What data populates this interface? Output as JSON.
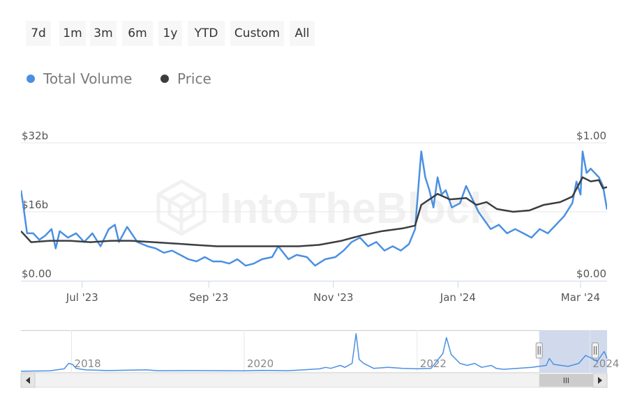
{
  "range_selector": {
    "buttons": [
      {
        "label": "7d"
      },
      {
        "label": "1m"
      },
      {
        "label": "3m"
      },
      {
        "label": "6m"
      },
      {
        "label": "1y"
      },
      {
        "label": "YTD"
      },
      {
        "label": "Custom"
      },
      {
        "label": "All"
      }
    ]
  },
  "legend": {
    "items": [
      {
        "label": "Total Volume",
        "color": "#4a90e2"
      },
      {
        "label": "Price",
        "color": "#3b3d40"
      }
    ]
  },
  "watermark": "IntoTheBlock",
  "colors": {
    "volume": "#4a90e2",
    "price": "#3b3d40",
    "navigator_selection": "#ccd6eb"
  },
  "chart_data": {
    "type": "line",
    "title": "",
    "xlabel": "",
    "ylabel": "",
    "x_range": [
      "2023-06-01",
      "2024-03-14"
    ],
    "x_ticks": [
      {
        "date": "2023-07-01",
        "label": "Jul '23"
      },
      {
        "date": "2023-09-01",
        "label": "Sep '23"
      },
      {
        "date": "2023-11-01",
        "label": "Nov '23"
      },
      {
        "date": "2024-01-01",
        "label": "Jan '24"
      },
      {
        "date": "2024-03-01",
        "label": "Mar '24"
      }
    ],
    "y_left": {
      "label_unit": "USD billions",
      "range": [
        0,
        32
      ],
      "ticks": [
        {
          "value": 0,
          "label": "$0.00"
        },
        {
          "value": 16,
          "label": "$16b"
        },
        {
          "value": 32,
          "label": "$32b"
        }
      ]
    },
    "y_right": {
      "label_unit": "USD",
      "range": [
        0,
        1
      ],
      "ticks": [
        {
          "value": 0,
          "label": "$0.00"
        },
        {
          "value": 1,
          "label": "$1.00"
        }
      ]
    },
    "grid": true,
    "legend_position": "top-left",
    "series": [
      {
        "name": "Total Volume",
        "axis": "left",
        "unit": "USD billions",
        "points": [
          [
            "2023-06-01",
            21
          ],
          [
            "2023-06-02",
            18
          ],
          [
            "2023-06-04",
            11
          ],
          [
            "2023-06-07",
            11
          ],
          [
            "2023-06-10",
            9.5
          ],
          [
            "2023-06-13",
            10.5
          ],
          [
            "2023-06-16",
            12
          ],
          [
            "2023-06-18",
            7.5
          ],
          [
            "2023-06-20",
            11.5
          ],
          [
            "2023-06-24",
            10
          ],
          [
            "2023-06-28",
            11
          ],
          [
            "2023-07-02",
            9
          ],
          [
            "2023-07-06",
            11
          ],
          [
            "2023-07-10",
            8
          ],
          [
            "2023-07-14",
            12
          ],
          [
            "2023-07-17",
            13
          ],
          [
            "2023-07-19",
            9
          ],
          [
            "2023-07-23",
            12.5
          ],
          [
            "2023-07-28",
            9
          ],
          [
            "2023-08-02",
            8
          ],
          [
            "2023-08-06",
            7.5
          ],
          [
            "2023-08-10",
            6.5
          ],
          [
            "2023-08-14",
            7
          ],
          [
            "2023-08-18",
            6
          ],
          [
            "2023-08-22",
            5
          ],
          [
            "2023-08-26",
            4.5
          ],
          [
            "2023-08-30",
            5.5
          ],
          [
            "2023-09-03",
            4.5
          ],
          [
            "2023-09-07",
            4.5
          ],
          [
            "2023-09-11",
            4
          ],
          [
            "2023-09-15",
            5
          ],
          [
            "2023-09-19",
            3.5
          ],
          [
            "2023-09-23",
            4
          ],
          [
            "2023-09-27",
            5
          ],
          [
            "2023-10-02",
            5.5
          ],
          [
            "2023-10-05",
            8
          ],
          [
            "2023-10-10",
            5
          ],
          [
            "2023-10-14",
            6
          ],
          [
            "2023-10-19",
            5.5
          ],
          [
            "2023-10-23",
            3.5
          ],
          [
            "2023-10-28",
            5
          ],
          [
            "2023-11-02",
            5.5
          ],
          [
            "2023-11-06",
            7
          ],
          [
            "2023-11-10",
            9
          ],
          [
            "2023-11-14",
            10
          ],
          [
            "2023-11-18",
            8
          ],
          [
            "2023-11-22",
            9
          ],
          [
            "2023-11-26",
            7
          ],
          [
            "2023-11-30",
            8
          ],
          [
            "2023-12-04",
            7
          ],
          [
            "2023-12-08",
            8.5
          ],
          [
            "2023-12-11",
            12
          ],
          [
            "2023-12-13",
            24
          ],
          [
            "2023-12-14",
            30
          ],
          [
            "2023-12-16",
            24
          ],
          [
            "2023-12-18",
            21
          ],
          [
            "2023-12-20",
            17
          ],
          [
            "2023-12-22",
            24
          ],
          [
            "2023-12-24",
            20
          ],
          [
            "2023-12-26",
            21
          ],
          [
            "2023-12-29",
            17
          ],
          [
            "2024-01-02",
            18
          ],
          [
            "2024-01-05",
            22
          ],
          [
            "2024-01-08",
            19
          ],
          [
            "2024-01-11",
            16
          ],
          [
            "2024-01-14",
            14
          ],
          [
            "2024-01-17",
            12
          ],
          [
            "2024-01-21",
            13
          ],
          [
            "2024-01-25",
            11
          ],
          [
            "2024-01-29",
            12
          ],
          [
            "2024-02-02",
            11
          ],
          [
            "2024-02-06",
            10
          ],
          [
            "2024-02-10",
            12
          ],
          [
            "2024-02-14",
            11
          ],
          [
            "2024-02-18",
            13
          ],
          [
            "2024-02-22",
            15
          ],
          [
            "2024-02-26",
            18
          ],
          [
            "2024-02-28",
            23
          ],
          [
            "2024-03-01",
            20
          ],
          [
            "2024-03-02",
            30
          ],
          [
            "2024-03-04",
            25
          ],
          [
            "2024-03-06",
            26
          ],
          [
            "2024-03-08",
            25
          ],
          [
            "2024-03-10",
            24
          ],
          [
            "2024-03-12",
            22
          ],
          [
            "2024-03-14",
            16.5
          ]
        ]
      },
      {
        "name": "Price",
        "axis": "right",
        "unit": "USD",
        "points": [
          [
            "2023-06-01",
            0.36
          ],
          [
            "2023-06-06",
            0.28
          ],
          [
            "2023-06-15",
            0.29
          ],
          [
            "2023-06-25",
            0.29
          ],
          [
            "2023-07-05",
            0.28
          ],
          [
            "2023-07-15",
            0.29
          ],
          [
            "2023-07-25",
            0.29
          ],
          [
            "2023-08-05",
            0.28
          ],
          [
            "2023-08-15",
            0.27
          ],
          [
            "2023-08-25",
            0.26
          ],
          [
            "2023-09-05",
            0.25
          ],
          [
            "2023-09-15",
            0.25
          ],
          [
            "2023-09-25",
            0.25
          ],
          [
            "2023-10-05",
            0.25
          ],
          [
            "2023-10-15",
            0.25
          ],
          [
            "2023-10-25",
            0.26
          ],
          [
            "2023-11-05",
            0.29
          ],
          [
            "2023-11-15",
            0.33
          ],
          [
            "2023-11-25",
            0.36
          ],
          [
            "2023-12-05",
            0.38
          ],
          [
            "2023-12-11",
            0.4
          ],
          [
            "2023-12-14",
            0.55
          ],
          [
            "2023-12-18",
            0.59
          ],
          [
            "2023-12-22",
            0.63
          ],
          [
            "2023-12-28",
            0.59
          ],
          [
            "2024-01-05",
            0.6
          ],
          [
            "2024-01-10",
            0.55
          ],
          [
            "2024-01-15",
            0.57
          ],
          [
            "2024-01-20",
            0.52
          ],
          [
            "2024-01-28",
            0.5
          ],
          [
            "2024-02-05",
            0.51
          ],
          [
            "2024-02-12",
            0.55
          ],
          [
            "2024-02-20",
            0.57
          ],
          [
            "2024-02-26",
            0.61
          ],
          [
            "2024-03-02",
            0.75
          ],
          [
            "2024-03-06",
            0.72
          ],
          [
            "2024-03-10",
            0.73
          ],
          [
            "2024-03-12",
            0.67
          ],
          [
            "2024-03-14",
            0.68
          ]
        ]
      }
    ]
  },
  "navigator": {
    "x_range": [
      "2017-06-01",
      "2024-03-14"
    ],
    "selected_range": [
      "2023-06-01",
      "2024-03-14"
    ],
    "year_labels": [
      {
        "date": "2018-01-01",
        "label": "2018"
      },
      {
        "date": "2020-01-01",
        "label": "2020"
      },
      {
        "date": "2022-01-01",
        "label": "2022"
      },
      {
        "date": "2024-01-01",
        "label": "2024"
      }
    ],
    "series_name": "Total Volume",
    "unit": "USD billions",
    "points": [
      [
        "2017-06-01",
        0.1
      ],
      [
        "2017-10-01",
        0.5
      ],
      [
        "2017-12-01",
        2.5
      ],
      [
        "2017-12-20",
        8
      ],
      [
        "2018-01-05",
        7
      ],
      [
        "2018-01-20",
        3
      ],
      [
        "2018-03-01",
        1.5
      ],
      [
        "2018-06-01",
        0.8
      ],
      [
        "2018-11-15",
        1.5
      ],
      [
        "2019-01-01",
        0.6
      ],
      [
        "2019-06-01",
        0.8
      ],
      [
        "2019-12-01",
        0.5
      ],
      [
        "2020-01-01",
        0.5
      ],
      [
        "2020-03-15",
        1
      ],
      [
        "2020-07-01",
        0.6
      ],
      [
        "2020-09-01",
        1.4
      ],
      [
        "2020-11-15",
        2.5
      ],
      [
        "2020-12-10",
        4
      ],
      [
        "2021-01-01",
        3
      ],
      [
        "2021-02-10",
        6
      ],
      [
        "2021-03-01",
        4
      ],
      [
        "2021-04-01",
        8
      ],
      [
        "2021-04-18",
        38
      ],
      [
        "2021-05-01",
        12
      ],
      [
        "2021-05-20",
        8
      ],
      [
        "2021-07-01",
        3
      ],
      [
        "2021-09-01",
        4
      ],
      [
        "2021-11-01",
        3
      ],
      [
        "2022-01-01",
        2.5
      ],
      [
        "2022-03-01",
        3
      ],
      [
        "2022-04-20",
        18
      ],
      [
        "2022-05-05",
        34
      ],
      [
        "2022-05-25",
        17
      ],
      [
        "2022-07-01",
        8
      ],
      [
        "2022-08-01",
        6
      ],
      [
        "2022-09-01",
        8
      ],
      [
        "2022-10-01",
        4
      ],
      [
        "2022-11-10",
        6
      ],
      [
        "2022-12-01",
        3
      ],
      [
        "2023-01-01",
        2
      ],
      [
        "2023-03-01",
        3
      ],
      [
        "2023-05-01",
        4
      ],
      [
        "2023-07-01",
        6
      ],
      [
        "2023-07-14",
        13
      ],
      [
        "2023-08-01",
        7
      ],
      [
        "2023-10-01",
        5
      ],
      [
        "2023-11-15",
        8
      ],
      [
        "2023-12-14",
        16
      ],
      [
        "2024-01-01",
        14
      ],
      [
        "2024-02-01",
        10
      ],
      [
        "2024-03-02",
        20
      ],
      [
        "2024-03-14",
        13
      ]
    ]
  }
}
